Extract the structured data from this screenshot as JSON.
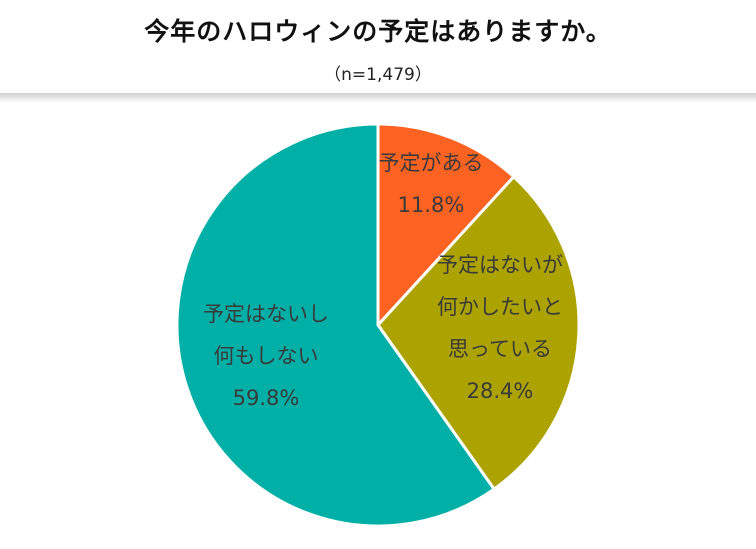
{
  "title": "今年のハロウィンの予定はありますか。",
  "subtitle": "（n=1,479）",
  "colors": {
    "slice1": "#fc6222",
    "slice2": "#aca200",
    "slice3": "#00afa6",
    "edge": "#ffffff"
  },
  "chart_data": {
    "type": "pie",
    "title": "今年のハロウィンの予定はありますか。",
    "subtitle": "（n=1,479）",
    "start": "12 o'clock",
    "direction": "clockwise",
    "slices": [
      {
        "label_lines": [
          "予定がある"
        ],
        "value": 11.8,
        "value_label": "11.8%"
      },
      {
        "label_lines": [
          "予定はないが",
          "何かしたいと",
          "思っている"
        ],
        "value": 28.4,
        "value_label": "28.4%"
      },
      {
        "label_lines": [
          "予定はないし",
          "何もしない"
        ],
        "value": 59.8,
        "value_label": "59.8%"
      }
    ]
  }
}
